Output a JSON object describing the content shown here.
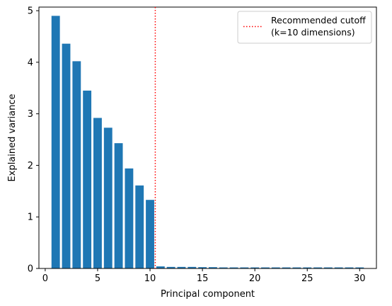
{
  "chart_data": {
    "type": "bar",
    "title": "",
    "xlabel": "Principal component",
    "ylabel": "Explained variance",
    "xlim": [
      -0.6,
      31.6
    ],
    "ylim": [
      0,
      5.07
    ],
    "x_ticks": [
      0,
      5,
      10,
      15,
      20,
      25,
      30
    ],
    "y_ticks": [
      0,
      1,
      2,
      3,
      4,
      5
    ],
    "grid": false,
    "bar_color": "#1f77b4",
    "x": [
      1,
      2,
      3,
      4,
      5,
      6,
      7,
      8,
      9,
      10,
      11,
      12,
      13,
      14,
      15,
      16,
      17,
      18,
      19,
      20,
      21,
      22,
      23,
      24,
      25,
      26,
      27,
      28,
      29,
      30
    ],
    "values": [
      4.9,
      4.36,
      4.02,
      3.45,
      2.92,
      2.73,
      2.43,
      1.94,
      1.61,
      1.33,
      0.04,
      0.03,
      0.03,
      0.03,
      0.025,
      0.025,
      0.02,
      0.02,
      0.02,
      0.02,
      0.02,
      0.02,
      0.02,
      0.02,
      0.02,
      0.02,
      0.02,
      0.02,
      0.02,
      0.02
    ],
    "cutoff": {
      "x": 10.5,
      "color": "#ff0000",
      "style": "dotted",
      "legend_label_line1": "Recommended cutoff",
      "legend_label_line2": "(k=10 dimensions)"
    },
    "legend_position": "top-right"
  }
}
